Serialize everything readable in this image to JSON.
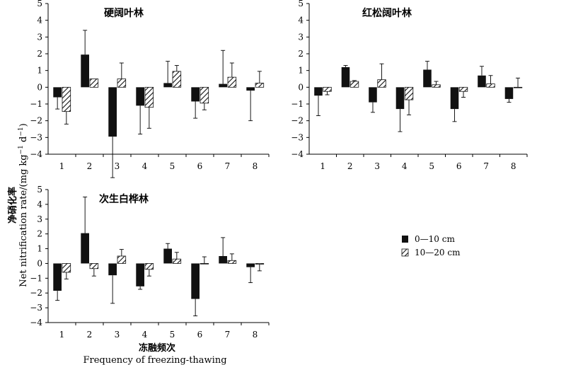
{
  "figure": {
    "ylabel_cn": "净硝化率",
    "ylabel_en": "Net nitrification rate/(mg kg",
    "ylabel_sup1": "−1",
    "ylabel_mid": " d",
    "ylabel_sup2": "−1",
    "ylabel_end": ")",
    "xlabel_cn": "冻融频次",
    "xlabel_en": "Frequency of freezing-thawing"
  },
  "colors": {
    "series1": "#111111",
    "series2_hatch": "#111111",
    "background": "#ffffff"
  },
  "chart_data": [
    {
      "type": "bar",
      "title": "硬阔叶林",
      "categories": [
        "1",
        "2",
        "3",
        "4",
        "5",
        "6",
        "7",
        "8"
      ],
      "ylim": [
        -4,
        5
      ],
      "yticks": [
        "-4",
        "-3",
        "-2",
        "-1",
        "0",
        "1",
        "2",
        "3",
        "4",
        "5"
      ],
      "series": [
        {
          "name": "0—10 cm",
          "fill": "solid",
          "values": [
            -0.6,
            1.95,
            -2.95,
            -1.1,
            0.25,
            -0.85,
            0.2,
            -0.2
          ],
          "errors": [
            0.7,
            1.45,
            2.45,
            1.7,
            1.3,
            1.0,
            2.0,
            1.8
          ]
        },
        {
          "name": "10—20 cm",
          "fill": "hatch",
          "values": [
            -1.45,
            0.5,
            0.5,
            -1.2,
            0.95,
            -0.95,
            0.6,
            0.25
          ],
          "errors": [
            0.75,
            0.0,
            0.95,
            1.25,
            0.35,
            0.4,
            0.85,
            0.7
          ]
        }
      ]
    },
    {
      "type": "bar",
      "title": "红松阔叶林",
      "categories": [
        "1",
        "2",
        "3",
        "4",
        "5",
        "6",
        "7",
        "8"
      ],
      "ylim": [
        -4,
        5
      ],
      "yticks": [
        "-4",
        "-3",
        "-2",
        "-1",
        "0",
        "1",
        "2",
        "3",
        "4",
        "5"
      ],
      "series": [
        {
          "name": "0—10 cm",
          "fill": "solid",
          "values": [
            -0.5,
            1.2,
            -0.9,
            -1.3,
            1.05,
            -1.3,
            0.7,
            -0.7
          ],
          "errors": [
            1.2,
            0.1,
            0.6,
            1.35,
            0.5,
            0.75,
            0.55,
            0.2
          ]
        },
        {
          "name": "10—20 cm",
          "fill": "hatch",
          "values": [
            -0.25,
            0.35,
            0.45,
            -0.75,
            0.15,
            -0.25,
            0.2,
            0.0
          ],
          "errors": [
            0.2,
            0.05,
            0.95,
            0.9,
            0.2,
            0.35,
            0.5,
            0.55
          ]
        }
      ]
    },
    {
      "type": "bar",
      "title": "次生白桦林",
      "categories": [
        "1",
        "2",
        "3",
        "4",
        "5",
        "6",
        "7",
        "8"
      ],
      "ylim": [
        -4,
        5
      ],
      "yticks": [
        "-4",
        "-3",
        "-2",
        "-1",
        "0",
        "1",
        "2",
        "3",
        "4",
        "5"
      ],
      "series": [
        {
          "name": "0—10 cm",
          "fill": "solid",
          "values": [
            -1.85,
            2.05,
            -0.8,
            -1.55,
            1.0,
            -2.4,
            0.5,
            -0.25
          ],
          "errors": [
            0.65,
            2.45,
            1.9,
            0.2,
            0.35,
            1.15,
            1.25,
            1.05
          ]
        },
        {
          "name": "10—20 cm",
          "fill": "hatch",
          "values": [
            -0.6,
            -0.35,
            0.5,
            -0.4,
            0.3,
            0.0,
            0.2,
            -0.05
          ],
          "errors": [
            0.45,
            0.5,
            0.45,
            0.45,
            0.45,
            0.45,
            0.45,
            0.45
          ]
        }
      ]
    }
  ],
  "legend": {
    "items": [
      {
        "label": "0—10 cm",
        "fill": "solid"
      },
      {
        "label": "10—20 cm",
        "fill": "hatch"
      }
    ]
  }
}
